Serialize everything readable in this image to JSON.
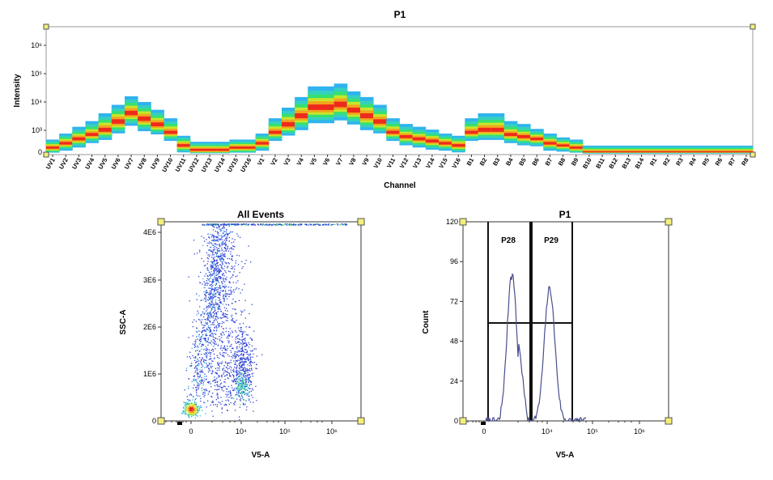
{
  "chart_data": [
    {
      "type": "heatmap",
      "title": "P1",
      "xlabel": "Channel",
      "ylabel": "Intensity",
      "y_scale": "log",
      "y_ticks": [
        "0",
        "10³",
        "10⁴",
        "10⁵",
        "10⁶"
      ],
      "categories": [
        "UV1",
        "UV2",
        "UV3",
        "UV4",
        "UV5",
        "UV6",
        "UV7",
        "UV8",
        "UV9",
        "UV10",
        "UV11",
        "UV12",
        "UV13",
        "UV14",
        "UV15",
        "UV16",
        "V1",
        "V2",
        "V3",
        "V4",
        "V5",
        "V6",
        "V7",
        "V8",
        "V9",
        "V10",
        "V11",
        "V12",
        "V13",
        "V14",
        "V15",
        "V16",
        "B1",
        "B2",
        "B3",
        "B4",
        "B5",
        "B6",
        "B7",
        "B8",
        "B9",
        "B10",
        "B11",
        "B12",
        "B13",
        "B14",
        "R1",
        "R2",
        "R3",
        "R4",
        "R5",
        "R6",
        "R7",
        "R8"
      ],
      "median_log10": [
        2.2,
        2.4,
        2.6,
        2.8,
        3.0,
        3.3,
        3.6,
        3.4,
        3.2,
        2.9,
        2.3,
        2.1,
        2.1,
        2.1,
        2.2,
        2.2,
        2.4,
        2.9,
        3.2,
        3.5,
        3.8,
        3.8,
        3.9,
        3.7,
        3.5,
        3.3,
        2.9,
        2.7,
        2.6,
        2.5,
        2.4,
        2.3,
        2.9,
        3.0,
        3.0,
        2.8,
        2.7,
        2.6,
        2.4,
        2.3,
        2.2,
        2.0,
        2.0,
        2.0,
        2.0,
        2.0,
        2.0,
        2.0,
        2.0,
        2.0,
        2.0,
        2.0,
        2.0,
        2.0
      ],
      "spread_log10": [
        0.5,
        0.6,
        0.7,
        0.7,
        0.8,
        0.8,
        0.8,
        0.8,
        0.7,
        0.7,
        0.6,
        0.5,
        0.5,
        0.5,
        0.5,
        0.5,
        0.6,
        0.7,
        0.8,
        0.9,
        1.0,
        1.0,
        1.0,
        0.9,
        0.9,
        0.8,
        0.7,
        0.7,
        0.7,
        0.7,
        0.6,
        0.6,
        0.7,
        0.8,
        0.8,
        0.7,
        0.7,
        0.6,
        0.6,
        0.5,
        0.5,
        0.4,
        0.4,
        0.4,
        0.4,
        0.4,
        0.4,
        0.4,
        0.4,
        0.4,
        0.4,
        0.4,
        0.4,
        0.4
      ]
    },
    {
      "type": "scatter",
      "title": "All Events",
      "xlabel": "V5-A",
      "ylabel": "SSC-A",
      "x_scale": "biexponential",
      "x_ticks": [
        "0",
        "10⁴",
        "10⁵",
        "10⁶"
      ],
      "y_ticks": [
        "0",
        "1E6",
        "2E6",
        "3E6",
        "4E6"
      ],
      "ylim": [
        0,
        4200000
      ],
      "populations": [
        {
          "x_center_log10": 2.6,
          "y_center": 200000,
          "density": "highest"
        },
        {
          "x_center_log10": 3.3,
          "y_center": 1500000,
          "density": "medium"
        },
        {
          "x_center_log10": 4.0,
          "y_center": 900000,
          "density": "medium"
        }
      ]
    },
    {
      "type": "line",
      "title": "P1",
      "xlabel": "V5-A",
      "ylabel": "Count",
      "x_scale": "biexponential",
      "x_ticks": [
        "0",
        "10⁴",
        "10⁵",
        "10⁶"
      ],
      "y_ticks": [
        "0",
        "24",
        "48",
        "72",
        "96",
        "120"
      ],
      "ylim": [
        0,
        120
      ],
      "gates": [
        {
          "name": "P28",
          "x_start_log10": 2.1,
          "x_end_log10": 3.55,
          "y_level": 59
        },
        {
          "name": "P29",
          "x_start_log10": 3.55,
          "x_end_log10": 4.55,
          "y_level": 59
        }
      ],
      "peaks": [
        {
          "x_log10": 2.9,
          "count": 88
        },
        {
          "x_log10": 3.85,
          "count": 80
        }
      ]
    }
  ]
}
